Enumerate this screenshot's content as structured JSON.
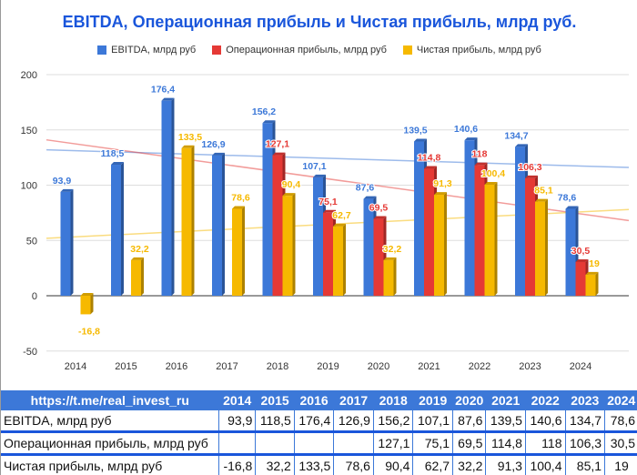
{
  "title": "EBITDA, Операционная прибыль и Чистая прибыль, млрд руб.",
  "table_header": "https://t.me/real_invest_ru",
  "chart_data": {
    "type": "bar",
    "title": "EBITDA, Операционная прибыль и Чистая прибыль, млрд руб.",
    "categories": [
      "2014",
      "2015",
      "2016",
      "2017",
      "2018",
      "2019",
      "2020",
      "2021",
      "2022",
      "2023",
      "2024"
    ],
    "ylim": [
      -50,
      200
    ],
    "yticks": [
      -50,
      0,
      50,
      100,
      150,
      200
    ],
    "grid": true,
    "legend": "top",
    "series": [
      {
        "name": "EBITDA, млрд руб",
        "color": "#3c78d8",
        "values": [
          93.9,
          118.5,
          176.4,
          126.9,
          156.2,
          107.1,
          87.6,
          139.5,
          140.6,
          134.7,
          78.6
        ],
        "labels": [
          "93,9",
          "118,5",
          "176,4",
          "126,9",
          "156,2",
          "107,1",
          "87,6",
          "139,5",
          "140,6",
          "134,7",
          "78,6"
        ],
        "trend": [
          132,
          116
        ]
      },
      {
        "name": "Операционная прибыль, млрд руб",
        "color": "#e53935",
        "values": [
          null,
          null,
          null,
          null,
          127.1,
          75.1,
          69.5,
          114.8,
          118,
          106.3,
          30.5
        ],
        "labels": [
          "",
          "",
          "",
          "",
          "127,1",
          "75,1",
          "69,5",
          "114,8",
          "118",
          "106,3",
          "30,5"
        ],
        "trend": [
          141,
          68
        ]
      },
      {
        "name": "Чистая прибыль, млрд руб",
        "color": "#f6b900",
        "values": [
          -16.8,
          32.2,
          133.5,
          78.6,
          90.4,
          62.7,
          32.2,
          91.3,
          100.4,
          85.1,
          19
        ],
        "labels": [
          "-16,8",
          "32,2",
          "133,5",
          "78,6",
          "90,4",
          "62,7",
          "32,2",
          "91,3",
          "100,4",
          "85,1",
          "19"
        ],
        "trend": [
          52,
          78
        ]
      }
    ]
  }
}
